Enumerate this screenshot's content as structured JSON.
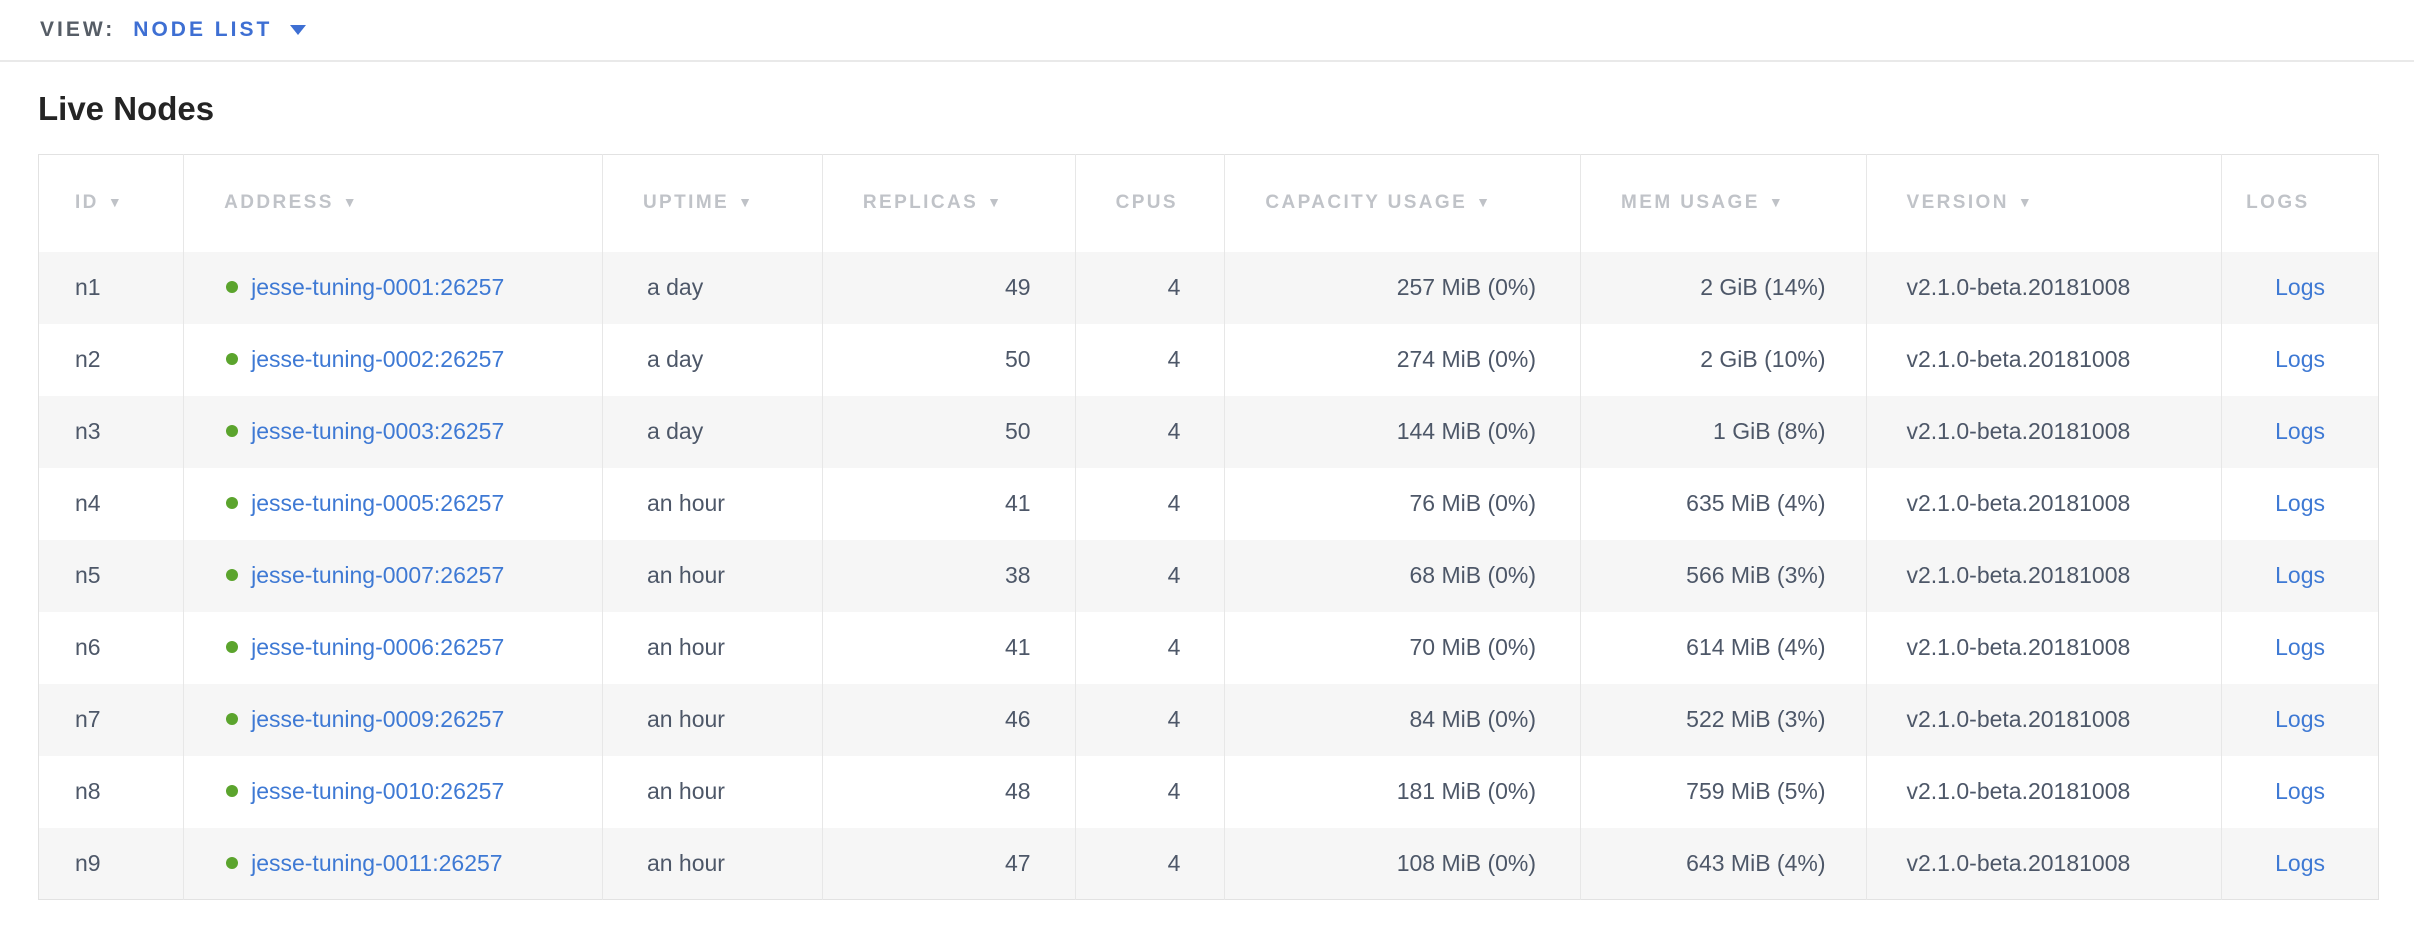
{
  "view_bar": {
    "label": "VIEW:",
    "selected": "NODE LIST"
  },
  "page": {
    "title": "Live Nodes"
  },
  "icons": {
    "sort_arrow": "▼",
    "dropdown_caret": "caret-down",
    "status_dot": "green-circle"
  },
  "colors": {
    "link_blue": "#3e79d4",
    "accent_blue": "#3e6fd3",
    "live_green": "#5ba42d",
    "header_gray": "#c0c3c8",
    "row_stripe": "#f6f6f6"
  },
  "table": {
    "headers": [
      {
        "label": "ID",
        "sorted": true
      },
      {
        "label": "ADDRESS",
        "sorted": true
      },
      {
        "label": "UPTIME",
        "sorted": true
      },
      {
        "label": "REPLICAS",
        "sorted": true
      },
      {
        "label": "CPUS",
        "sorted": false
      },
      {
        "label": "CAPACITY USAGE",
        "sorted": true
      },
      {
        "label": "MEM USAGE",
        "sorted": true
      },
      {
        "label": "VERSION",
        "sorted": true
      },
      {
        "label": "LOGS",
        "sorted": false
      }
    ],
    "rows": [
      {
        "id": "n1",
        "address": "jesse-tuning-0001:26257",
        "uptime": "a day",
        "replicas": "49",
        "cpus": "4",
        "capacity": "257 MiB (0%)",
        "mem": "2 GiB (14%)",
        "version": "v2.1.0-beta.20181008",
        "logs": "Logs"
      },
      {
        "id": "n2",
        "address": "jesse-tuning-0002:26257",
        "uptime": "a day",
        "replicas": "50",
        "cpus": "4",
        "capacity": "274 MiB (0%)",
        "mem": "2 GiB (10%)",
        "version": "v2.1.0-beta.20181008",
        "logs": "Logs"
      },
      {
        "id": "n3",
        "address": "jesse-tuning-0003:26257",
        "uptime": "a day",
        "replicas": "50",
        "cpus": "4",
        "capacity": "144 MiB (0%)",
        "mem": "1 GiB (8%)",
        "version": "v2.1.0-beta.20181008",
        "logs": "Logs"
      },
      {
        "id": "n4",
        "address": "jesse-tuning-0005:26257",
        "uptime": "an hour",
        "replicas": "41",
        "cpus": "4",
        "capacity": "76 MiB (0%)",
        "mem": "635 MiB (4%)",
        "version": "v2.1.0-beta.20181008",
        "logs": "Logs"
      },
      {
        "id": "n5",
        "address": "jesse-tuning-0007:26257",
        "uptime": "an hour",
        "replicas": "38",
        "cpus": "4",
        "capacity": "68 MiB (0%)",
        "mem": "566 MiB (3%)",
        "version": "v2.1.0-beta.20181008",
        "logs": "Logs"
      },
      {
        "id": "n6",
        "address": "jesse-tuning-0006:26257",
        "uptime": "an hour",
        "replicas": "41",
        "cpus": "4",
        "capacity": "70 MiB (0%)",
        "mem": "614 MiB (4%)",
        "version": "v2.1.0-beta.20181008",
        "logs": "Logs"
      },
      {
        "id": "n7",
        "address": "jesse-tuning-0009:26257",
        "uptime": "an hour",
        "replicas": "46",
        "cpus": "4",
        "capacity": "84 MiB (0%)",
        "mem": "522 MiB (3%)",
        "version": "v2.1.0-beta.20181008",
        "logs": "Logs"
      },
      {
        "id": "n8",
        "address": "jesse-tuning-0010:26257",
        "uptime": "an hour",
        "replicas": "48",
        "cpus": "4",
        "capacity": "181 MiB (0%)",
        "mem": "759 MiB (5%)",
        "version": "v2.1.0-beta.20181008",
        "logs": "Logs"
      },
      {
        "id": "n9",
        "address": "jesse-tuning-0011:26257",
        "uptime": "an hour",
        "replicas": "47",
        "cpus": "4",
        "capacity": "108 MiB (0%)",
        "mem": "643 MiB (4%)",
        "version": "v2.1.0-beta.20181008",
        "logs": "Logs"
      }
    ]
  }
}
